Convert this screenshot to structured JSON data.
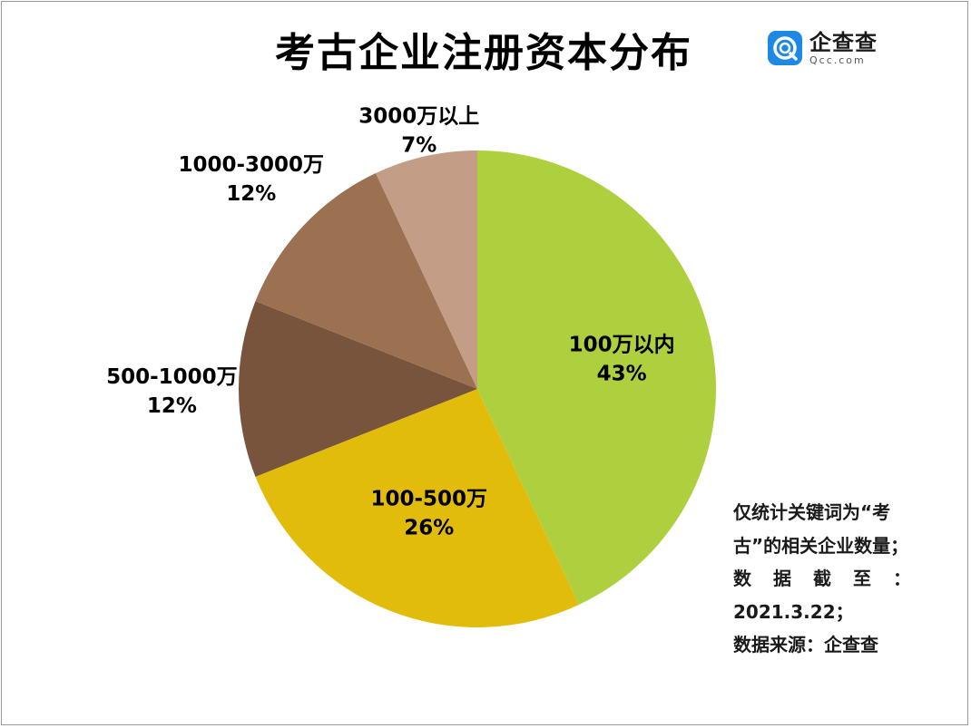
{
  "title": "考古企业注册资本分布",
  "logo": {
    "name": "企查查",
    "sub": "Qcc.com",
    "icon": "qcc-logo-icon",
    "color": "#1e88e5"
  },
  "chart_data": {
    "type": "pie",
    "title": "考古企业注册资本分布",
    "start": "top",
    "direction": "clockwise",
    "categories": [
      "100万以内",
      "100-500万",
      "500-1000万",
      "1000-3000万",
      "3000万以上"
    ],
    "values": [
      43,
      26,
      12,
      12,
      7
    ],
    "labels": [
      "43%",
      "26%",
      "12%",
      "12%",
      "7%"
    ],
    "colors": [
      "#aed03f",
      "#e2bc0b",
      "#77543b",
      "#9c7151",
      "#c39d85"
    ]
  },
  "note": {
    "line1": "仅统计关键词为“考",
    "line2": "古”的相关企业数量；",
    "line3": "数 据 截 至 ：",
    "line4": "2021.3.22；",
    "line5": "数据来源：企查查"
  }
}
